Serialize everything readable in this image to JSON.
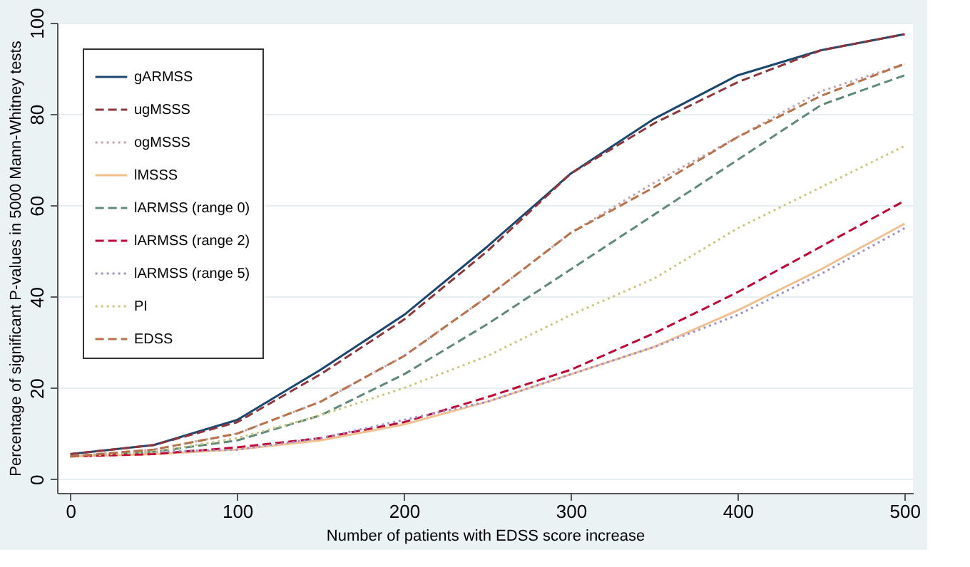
{
  "chart_data": {
    "type": "line",
    "xlabel": "Number of patients with EDSS score increase",
    "ylabel": "Percentage of significant P-values in 5000 Mann-Whitney tests",
    "x": [
      0,
      50,
      100,
      150,
      200,
      250,
      300,
      350,
      400,
      450,
      500
    ],
    "series": [
      {
        "name": "gARMSS",
        "color": "#1a476f",
        "line_style": "solid",
        "values": [
          5.5,
          7.5,
          13,
          24,
          36,
          51,
          67,
          79,
          88.5,
          94,
          97.5
        ]
      },
      {
        "name": "ugMSSS",
        "color": "#90353b",
        "line_style": "dashed",
        "values": [
          5.5,
          7.5,
          12.5,
          23,
          35,
          50,
          67,
          78,
          87,
          94,
          97.5
        ]
      },
      {
        "name": "ogMSSS",
        "color": "#c7a0b0",
        "line_style": "dotted",
        "values": [
          5,
          6.5,
          10,
          17,
          27,
          40,
          54,
          65,
          75,
          85,
          91
        ]
      },
      {
        "name": "lMSSS",
        "color": "#f2c08e",
        "line_style": "solid",
        "values": [
          5,
          5.5,
          6.5,
          8.5,
          12,
          17,
          23,
          29,
          37,
          46,
          56
        ]
      },
      {
        "name": "lARMSS (range 0)",
        "color": "#5f8a7a",
        "line_style": "dashed",
        "values": [
          5,
          6,
          8.5,
          14,
          23,
          34,
          46,
          58,
          70,
          82,
          88.5
        ]
      },
      {
        "name": "lARMSS (range 2)",
        "color": "#c10534",
        "line_style": "dashed",
        "values": [
          5,
          5.5,
          7,
          9,
          12.5,
          18,
          24,
          32,
          41,
          51,
          61
        ]
      },
      {
        "name": "lARMSS (range 5)",
        "color": "#9b8fd0",
        "line_style": "dotted",
        "values": [
          5,
          6,
          6.5,
          9,
          13,
          17,
          23,
          29,
          36,
          45,
          55
        ]
      },
      {
        "name": "PI",
        "color": "#cdc67a",
        "line_style": "dotted",
        "values": [
          5,
          6,
          9,
          14,
          20,
          27,
          36,
          44,
          55,
          64,
          73
        ]
      },
      {
        "name": "EDSS",
        "color": "#b8724a",
        "line_style": "dashed",
        "values": [
          5,
          6.5,
          10,
          17,
          27,
          40,
          54,
          64,
          75,
          84,
          91
        ]
      }
    ],
    "xlim": [
      -8,
      505
    ],
    "ylim": [
      -3,
      100
    ],
    "xticks": [
      0,
      100,
      200,
      300,
      400,
      500
    ],
    "yticks": [
      0,
      20,
      40,
      60,
      80,
      100
    ],
    "grid": "y",
    "legend": "top left",
    "marker": "none"
  }
}
